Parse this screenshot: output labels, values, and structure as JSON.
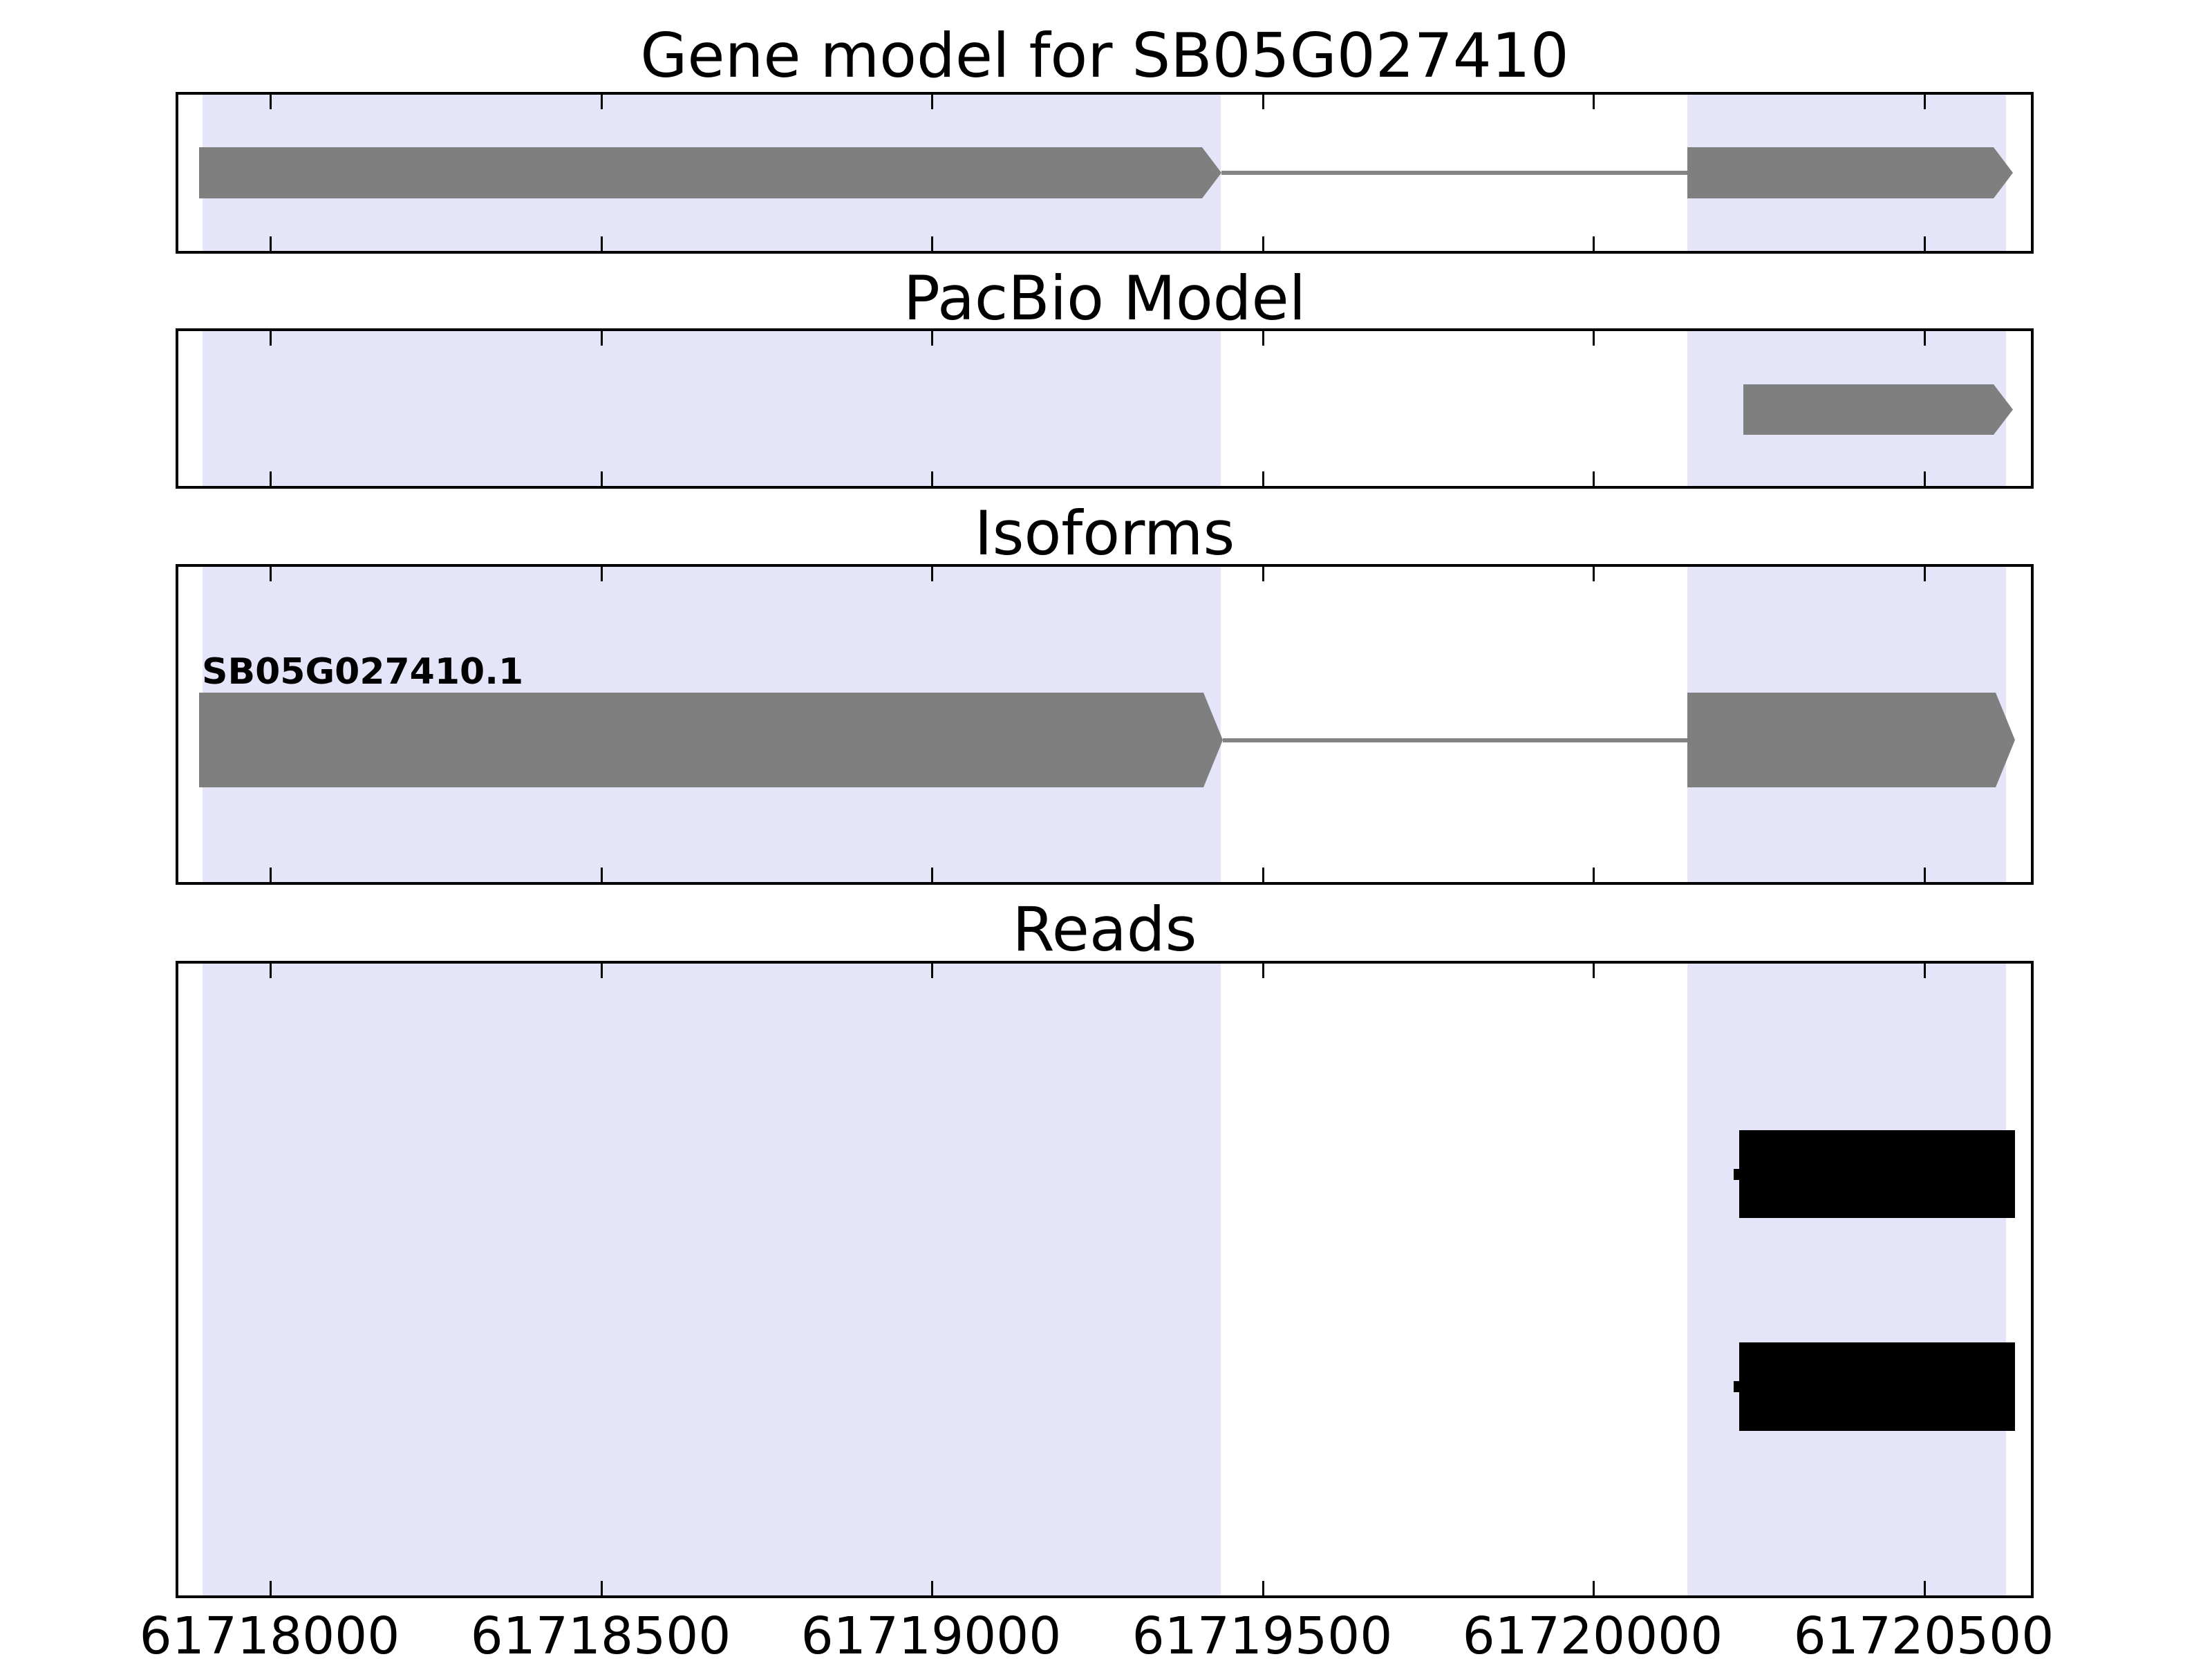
{
  "figure": {
    "background": "#ffffff",
    "border_color": "#000000"
  },
  "chart_data": {
    "type": "genome-tracks",
    "gene_id": "SB05G027410",
    "axis": {
      "xlim": [
        61717858,
        61720666
      ],
      "ticks": [
        61718000,
        61718500,
        61719000,
        61719500,
        61720000,
        61720500
      ],
      "tick_labels": [
        "61718000",
        "61718500",
        "61719000",
        "61719500",
        "61720000",
        "61720500"
      ]
    },
    "highlight_color": "#e5e5fa",
    "feature_color": "#7f7f7f",
    "intron_color": "#848484",
    "read_color": "#000000",
    "highlight_regions": [
      {
        "start": 61717899,
        "end": 61719437
      },
      {
        "start": 61720143,
        "end": 61720624
      }
    ],
    "panels": [
      {
        "key": "gene_model",
        "title": "Gene model for SB05G027410",
        "features": [
          {
            "type": "gene",
            "strand": "+",
            "exons": [
              [
                61717893,
                61719439
              ],
              [
                61720143,
                61720635
              ]
            ]
          }
        ]
      },
      {
        "key": "pacbio",
        "title": "PacBio Model",
        "features": [
          {
            "type": "gene",
            "strand": "+",
            "exons": [
              [
                61720227,
                61720635
              ]
            ]
          }
        ]
      },
      {
        "key": "isoforms",
        "title": "Isoforms",
        "features": [
          {
            "type": "gene",
            "strand": "+",
            "label": "SB05G027410.1",
            "exons": [
              [
                61717893,
                61719441
              ],
              [
                61720143,
                61720638
              ]
            ]
          }
        ]
      },
      {
        "key": "reads",
        "title": "Reads",
        "features": [
          {
            "type": "read",
            "start": 61720221,
            "end": 61720638
          },
          {
            "type": "read",
            "start": 61720221,
            "end": 61720638
          }
        ]
      }
    ]
  }
}
